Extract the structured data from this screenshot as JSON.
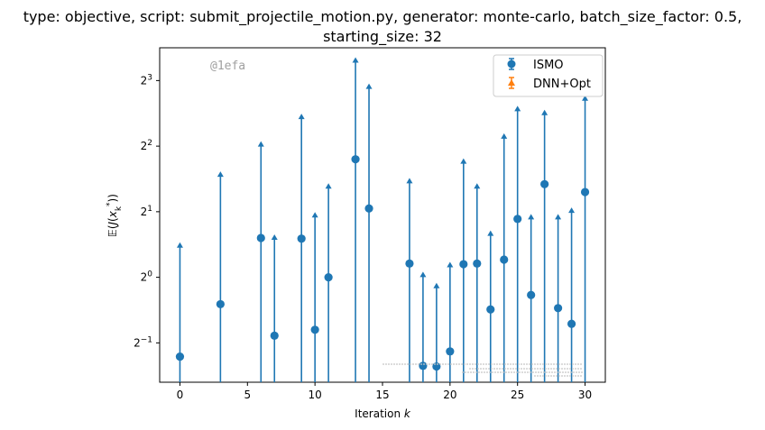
{
  "chart_data": {
    "type": "scatter",
    "title_line1": "type: objective, script: submit_projectile_motion.py, generator: monte-carlo, batch_size_factor: 0.5,",
    "title_line2": "starting_size: 32",
    "xlabel": "Iteration k",
    "ylabel": "E(J(x_k*))",
    "y_scale": "log2",
    "xlim": [
      -1.5,
      31.5
    ],
    "ylim_log2": [
      -1.6,
      3.5
    ],
    "x_ticks": [
      0,
      5,
      10,
      15,
      20,
      25,
      30
    ],
    "x_tick_labels": [
      "0",
      "5",
      "10",
      "15",
      "20",
      "25",
      "30"
    ],
    "y_ticks_log2": [
      -1,
      0,
      1,
      2,
      3
    ],
    "legend_position": "upper-right",
    "watermark": "@1efa",
    "series": [
      {
        "name": "ISMO",
        "color": "#1f77b4",
        "marker": "circle",
        "x": [
          0,
          3,
          6,
          7,
          9,
          10,
          11,
          13,
          14,
          17,
          18,
          19,
          20,
          21,
          22,
          23,
          24,
          25,
          26,
          27,
          28,
          29,
          30
        ],
        "y_log2": [
          -1.21,
          -0.41,
          0.6,
          -0.89,
          0.59,
          -0.8,
          0.0,
          1.8,
          1.05,
          0.21,
          -1.35,
          -1.36,
          -1.13,
          0.2,
          0.21,
          -0.49,
          0.27,
          0.89,
          -0.27,
          1.42,
          -0.47,
          -0.71,
          1.3
        ],
        "upper_log2": [
          0.48,
          1.56,
          2.02,
          0.6,
          2.44,
          0.94,
          1.38,
          3.3,
          2.9,
          1.46,
          0.03,
          -0.14,
          0.18,
          1.76,
          1.38,
          0.66,
          2.14,
          2.56,
          0.91,
          2.5,
          0.91,
          1.01,
          2.72
        ]
      },
      {
        "name": "DNN+Opt",
        "color": "#ff7f0e",
        "marker": "triangle",
        "x": [],
        "y_log2": []
      }
    ]
  }
}
